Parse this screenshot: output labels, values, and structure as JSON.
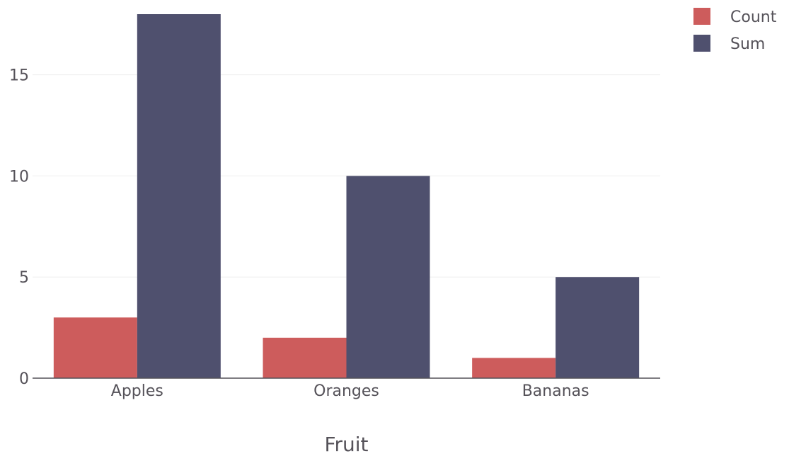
{
  "chart_data": {
    "type": "bar",
    "categories": [
      "Apples",
      "Oranges",
      "Bananas"
    ],
    "series": [
      {
        "name": "Count",
        "values": [
          3,
          2,
          1
        ],
        "color": "#cd5c5c"
      },
      {
        "name": "Sum",
        "values": [
          18,
          10,
          5
        ],
        "color": "#4f506e"
      }
    ],
    "xlabel": "Fruit",
    "ylabel": "",
    "ylim": [
      0,
      18
    ],
    "yticks": [
      0,
      5,
      10,
      15
    ],
    "grid": true,
    "legend_position": "top-right"
  },
  "colors": {
    "text": "#555259",
    "axis_line": "#555259",
    "grid": "#eeeeee"
  }
}
